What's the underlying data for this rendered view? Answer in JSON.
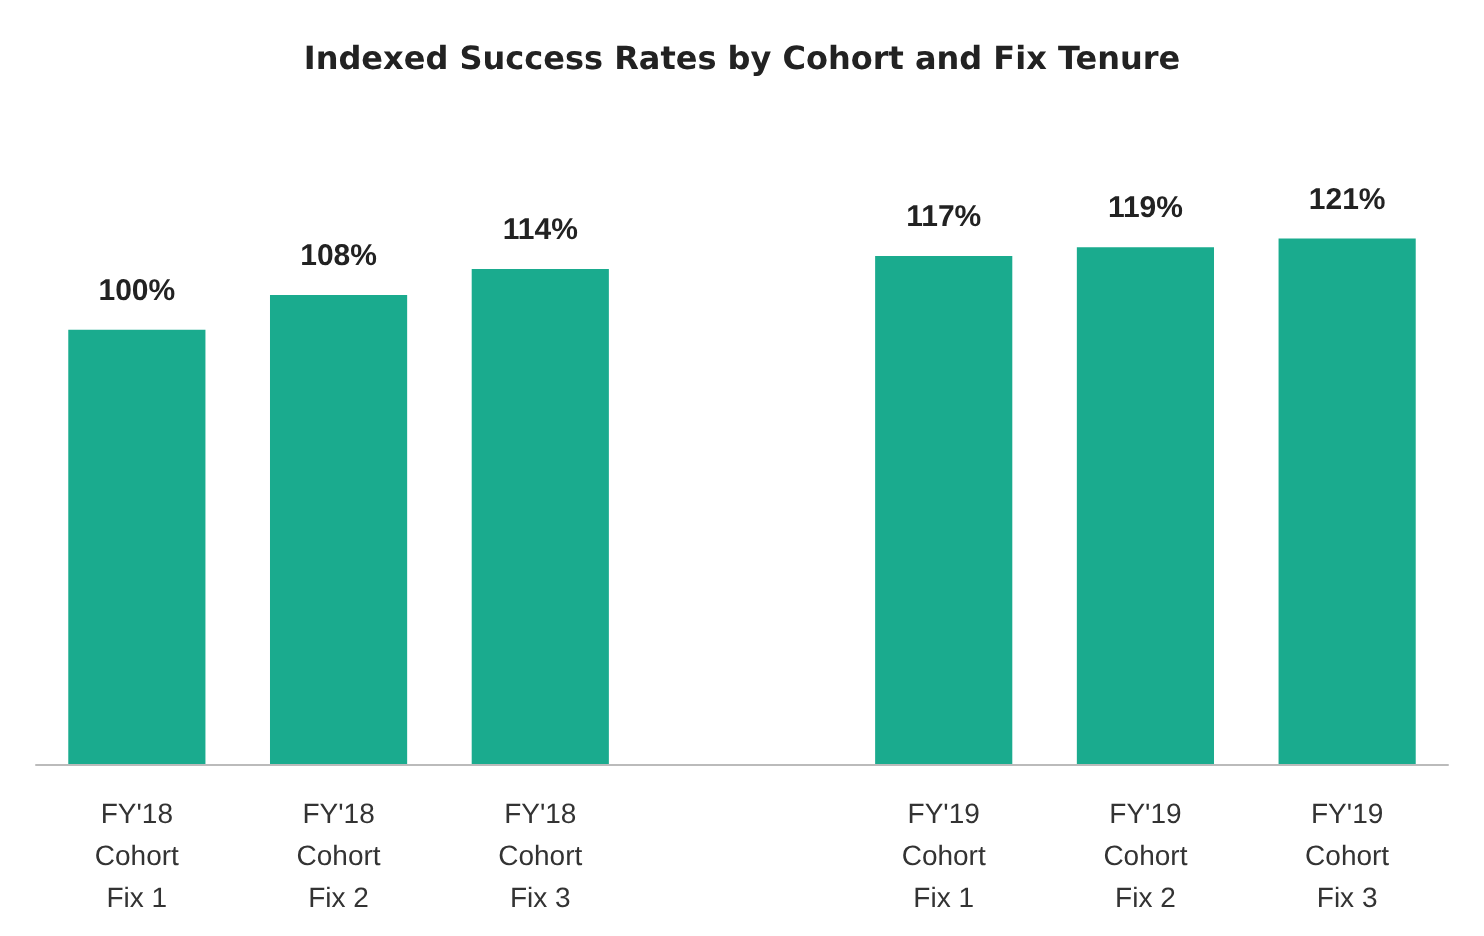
{
  "chart_data": {
    "type": "bar",
    "title": "Indexed Success Rates by Cohort and Fix Tenure",
    "categories": [
      "FY'18\nCohort\nFix 1",
      "FY'18\nCohort\nFix 2",
      "FY'18\nCohort\nFix 3",
      null,
      "FY'19\nCohort\nFix 1",
      "FY'19\nCohort\nFix 2",
      "FY'19\nCohort\nFix 3"
    ],
    "values": [
      100,
      108,
      114,
      null,
      117,
      119,
      121
    ],
    "value_labels": [
      "100%",
      "108%",
      "114%",
      null,
      "117%",
      "119%",
      "121%"
    ],
    "color": "#1aab8e",
    "tick_labels": "x"
  }
}
